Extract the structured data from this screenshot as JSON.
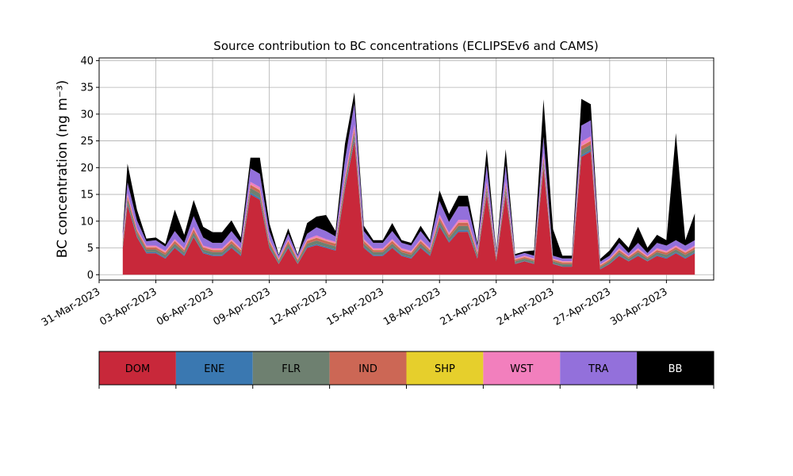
{
  "chart_data": {
    "type": "area",
    "stacked": true,
    "title": "Source contribution to BC concentrations (ECLIPSEv6 and CAMS)",
    "ylabel": "BC concentration (ng m⁻³)",
    "xlabel": "",
    "ylim": [
      -1,
      40.5
    ],
    "xlim": [
      "2023-03-31T00:00",
      "2023-05-02T12:00"
    ],
    "grid": true,
    "yticks": [
      0,
      5,
      10,
      15,
      20,
      25,
      30,
      35,
      40
    ],
    "xticks": [
      "31-Mar-2023",
      "03-Apr-2023",
      "06-Apr-2023",
      "09-Apr-2023",
      "12-Apr-2023",
      "15-Apr-2023",
      "18-Apr-2023",
      "21-Apr-2023",
      "24-Apr-2023",
      "27-Apr-2023",
      "30-Apr-2023"
    ],
    "legend_placement": "colorbar below plot",
    "x": [
      "2023-04-01T06:00",
      "2023-04-01T12:00",
      "2023-04-02T00:00",
      "2023-04-02T12:00",
      "2023-04-03T00:00",
      "2023-04-03T12:00",
      "2023-04-04T00:00",
      "2023-04-04T12:00",
      "2023-04-05T00:00",
      "2023-04-05T12:00",
      "2023-04-06T00:00",
      "2023-04-06T12:00",
      "2023-04-07T00:00",
      "2023-04-07T12:00",
      "2023-04-08T00:00",
      "2023-04-08T12:00",
      "2023-04-09T00:00",
      "2023-04-09T12:00",
      "2023-04-10T00:00",
      "2023-04-10T12:00",
      "2023-04-11T00:00",
      "2023-04-11T12:00",
      "2023-04-12T00:00",
      "2023-04-12T12:00",
      "2023-04-13T00:00",
      "2023-04-13T12:00",
      "2023-04-14T00:00",
      "2023-04-14T12:00",
      "2023-04-15T00:00",
      "2023-04-15T12:00",
      "2023-04-16T00:00",
      "2023-04-16T12:00",
      "2023-04-17T00:00",
      "2023-04-17T12:00",
      "2023-04-18T00:00",
      "2023-04-18T12:00",
      "2023-04-19T00:00",
      "2023-04-19T12:00",
      "2023-04-20T00:00",
      "2023-04-20T12:00",
      "2023-04-21T00:00",
      "2023-04-21T12:00",
      "2023-04-22T00:00",
      "2023-04-22T12:00",
      "2023-04-23T00:00",
      "2023-04-23T12:00",
      "2023-04-24T00:00",
      "2023-04-24T12:00",
      "2023-04-25T00:00",
      "2023-04-25T12:00",
      "2023-04-26T00:00",
      "2023-04-26T12:00",
      "2023-04-27T00:00",
      "2023-04-27T12:00",
      "2023-04-28T00:00",
      "2023-04-28T12:00",
      "2023-04-29T00:00",
      "2023-04-29T12:00",
      "2023-04-30T00:00",
      "2023-04-30T12:00",
      "2023-05-01T00:00",
      "2023-05-01T12:00"
    ],
    "series": [
      {
        "name": "DOM",
        "color": "#c8283a",
        "values": [
          5,
          13,
          7,
          4,
          4,
          3,
          5,
          3.5,
          7,
          4,
          3.5,
          3.5,
          5,
          3.5,
          15,
          14,
          5,
          2,
          5,
          2,
          5,
          5.5,
          5,
          4.5,
          16,
          25,
          5,
          3.5,
          3.5,
          5,
          3.5,
          3,
          5,
          3.5,
          9,
          6,
          8,
          8,
          3,
          15,
          2.5,
          15,
          2,
          2.5,
          2,
          20,
          2,
          1.5,
          1.5,
          22,
          23,
          1,
          2,
          3.5,
          2.5,
          3.5,
          2.5,
          3.5,
          3,
          4,
          3,
          4
        ]
      },
      {
        "name": "ENE",
        "color": "#3a78b1",
        "values": [
          0.2,
          0.3,
          0.2,
          0.2,
          0.2,
          0.2,
          0.2,
          0.2,
          0.2,
          0.2,
          0.2,
          0.2,
          0.2,
          0.2,
          0.3,
          0.3,
          0.2,
          0.1,
          0.2,
          0.1,
          0.2,
          0.2,
          0.2,
          0.2,
          0.3,
          0.4,
          0.2,
          0.2,
          0.2,
          0.2,
          0.2,
          0.2,
          0.2,
          0.2,
          0.3,
          0.2,
          0.3,
          0.3,
          0.2,
          0.3,
          0.1,
          0.3,
          0.1,
          0.1,
          0.1,
          0.3,
          0.1,
          0.1,
          0.1,
          0.3,
          0.3,
          0.1,
          0.1,
          0.2,
          0.1,
          0.2,
          0.1,
          0.2,
          0.2,
          0.2,
          0.2,
          0.2
        ]
      },
      {
        "name": "FLR",
        "color": "#6e8070",
        "values": [
          0.6,
          0.8,
          0.6,
          0.5,
          0.5,
          0.5,
          0.6,
          0.5,
          0.7,
          0.5,
          0.5,
          0.5,
          0.6,
          0.5,
          0.9,
          0.9,
          0.6,
          0.4,
          0.6,
          0.4,
          0.6,
          0.7,
          0.6,
          0.6,
          0.9,
          1.1,
          0.6,
          0.5,
          0.5,
          0.6,
          0.5,
          0.5,
          0.6,
          0.5,
          0.8,
          0.7,
          0.8,
          0.8,
          0.5,
          0.9,
          0.4,
          0.9,
          0.4,
          0.4,
          0.4,
          1,
          0.4,
          0.4,
          0.4,
          1,
          1,
          0.3,
          0.4,
          0.5,
          0.4,
          0.5,
          0.4,
          0.5,
          0.5,
          0.5,
          0.5,
          0.5
        ]
      },
      {
        "name": "IND",
        "color": "#cc6755",
        "values": [
          0.5,
          0.6,
          0.5,
          0.4,
          0.4,
          0.4,
          0.5,
          0.4,
          0.6,
          0.4,
          0.4,
          0.4,
          0.5,
          0.4,
          0.6,
          0.6,
          0.5,
          0.3,
          0.5,
          0.3,
          0.5,
          0.5,
          0.5,
          0.5,
          0.6,
          0.7,
          0.5,
          0.4,
          0.4,
          0.5,
          0.4,
          0.4,
          0.5,
          0.4,
          0.6,
          0.5,
          0.6,
          0.6,
          0.4,
          0.6,
          0.3,
          0.6,
          0.3,
          0.3,
          0.3,
          0.7,
          0.3,
          0.3,
          0.3,
          0.7,
          0.7,
          0.3,
          0.3,
          0.4,
          0.3,
          0.4,
          0.3,
          0.4,
          0.4,
          0.4,
          0.4,
          0.4
        ]
      },
      {
        "name": "SHP",
        "color": "#e6cf2c",
        "values": [
          0.05,
          0.05,
          0.05,
          0.05,
          0.05,
          0.05,
          0.05,
          0.05,
          0.05,
          0.05,
          0.05,
          0.05,
          0.05,
          0.05,
          0.05,
          0.05,
          0.05,
          0.05,
          0.05,
          0.05,
          0.05,
          0.05,
          0.05,
          0.05,
          0.05,
          0.05,
          0.05,
          0.05,
          0.05,
          0.05,
          0.05,
          0.05,
          0.05,
          0.05,
          0.05,
          0.05,
          0.05,
          0.05,
          0.05,
          0.05,
          0.05,
          0.05,
          0.05,
          0.05,
          0.05,
          0.05,
          0.05,
          0.05,
          0.05,
          0.05,
          0.05,
          0.05,
          0.05,
          0.05,
          0.05,
          0.05,
          0.05,
          0.05,
          0.05,
          0.05,
          0.05,
          0.05
        ]
      },
      {
        "name": "WST",
        "color": "#f27fbd",
        "values": [
          0.3,
          0.5,
          0.3,
          0.3,
          0.3,
          0.3,
          0.3,
          0.3,
          0.4,
          0.3,
          0.3,
          0.3,
          0.3,
          0.3,
          0.5,
          0.5,
          0.3,
          0.2,
          0.3,
          0.2,
          0.3,
          0.4,
          0.3,
          0.3,
          0.6,
          0.8,
          0.3,
          0.3,
          0.3,
          0.3,
          0.3,
          0.3,
          0.3,
          0.3,
          0.5,
          0.4,
          0.5,
          0.5,
          0.3,
          0.6,
          0.2,
          0.6,
          0.2,
          0.2,
          0.2,
          0.7,
          0.2,
          0.2,
          0.2,
          0.8,
          0.8,
          0.2,
          0.2,
          0.3,
          0.2,
          0.3,
          0.2,
          0.3,
          0.3,
          0.3,
          0.3,
          0.3
        ]
      },
      {
        "name": "TRA",
        "color": "#9370db",
        "values": [
          1,
          2,
          1.5,
          0.8,
          1,
          0.8,
          1.5,
          1,
          2,
          1.5,
          1,
          1,
          1.5,
          1,
          2.5,
          2.5,
          1.5,
          0.5,
          1,
          0.5,
          1,
          1.5,
          1.5,
          1,
          3,
          4,
          1.5,
          1,
          1,
          1.5,
          1,
          1,
          1.5,
          1,
          2.5,
          2,
          2.5,
          2.5,
          1,
          3,
          0.5,
          3,
          0.5,
          0.5,
          0.5,
          3,
          0.5,
          0.5,
          0.5,
          3,
          3,
          0.5,
          0.5,
          1,
          0.5,
          1,
          0.5,
          1,
          1,
          1,
          1,
          1
        ]
      },
      {
        "name": "BB",
        "color": "#000000",
        "values": [
          0.5,
          3.5,
          2,
          0.5,
          0.5,
          0.5,
          4,
          1.5,
          3,
          2,
          2,
          2,
          2,
          1,
          2,
          3,
          1.5,
          0.2,
          1,
          0.2,
          2,
          2,
          3,
          1,
          3,
          2,
          1,
          0.5,
          0.5,
          1.5,
          0.5,
          0.5,
          1,
          0.5,
          2,
          1.5,
          2,
          2,
          0.5,
          3,
          0.3,
          3,
          0.3,
          0.3,
          1,
          7,
          5,
          0.5,
          0.5,
          5,
          3,
          0.5,
          1,
          1,
          1,
          3,
          1,
          1.5,
          1,
          20,
          1,
          5
        ]
      }
    ]
  }
}
